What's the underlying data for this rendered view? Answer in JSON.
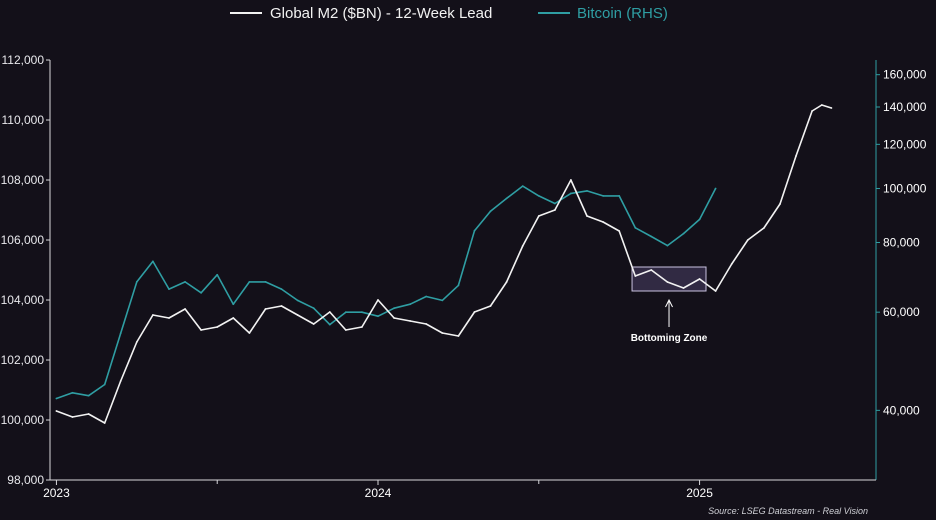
{
  "colors": {
    "background": "#131019",
    "m2_line": "#f2f2f2",
    "btc_line": "#2f9ea3",
    "right_axis": "#2f9ea3",
    "box_fill": "#4a3f66",
    "box_stroke": "#c9c2e0"
  },
  "chart_data": {
    "type": "line",
    "legend": {
      "placement": "top-center",
      "entries": [
        {
          "label": "Global M2 ($BN) - 12-Week Lead",
          "color": "#f2f2f2"
        },
        {
          "label": "Bitcoin (RHS)",
          "color": "#2f9ea3"
        }
      ]
    },
    "x_ticks": [
      "2023",
      "2024",
      "2025"
    ],
    "x_tick_values": [
      2023.0,
      2024.0,
      2025.0
    ],
    "xlim": [
      2022.98,
      2025.53
    ],
    "left_axis": {
      "ylim": [
        98000,
        112000
      ],
      "ticks": [
        98000,
        100000,
        102000,
        104000,
        106000,
        108000,
        110000,
        112000
      ],
      "tick_labels": [
        "98,000",
        "100,000",
        "102,000",
        "104,000",
        "106,000",
        "108,000",
        "110,000",
        "112,000"
      ]
    },
    "right_axis": {
      "scale": "log",
      "ylim": [
        30000,
        170000
      ],
      "ticks": [
        40000,
        60000,
        80000,
        100000,
        120000,
        140000,
        160000
      ],
      "tick_labels": [
        "40,000",
        "60,000",
        "80,000",
        "100,000",
        "120,000",
        "140,000",
        "160,000"
      ]
    },
    "series": [
      {
        "name": "Global M2 ($BN) - 12-Week Lead",
        "axis": "left",
        "x": [
          2023.0,
          2023.05,
          2023.1,
          2023.15,
          2023.2,
          2023.25,
          2023.3,
          2023.35,
          2023.4,
          2023.45,
          2023.5,
          2023.55,
          2023.6,
          2023.65,
          2023.7,
          2023.75,
          2023.8,
          2023.85,
          2023.9,
          2023.95,
          2024.0,
          2024.05,
          2024.1,
          2024.15,
          2024.2,
          2024.25,
          2024.3,
          2024.35,
          2024.4,
          2024.45,
          2024.5,
          2024.55,
          2024.6,
          2024.65,
          2024.7,
          2024.75,
          2024.8,
          2024.85,
          2024.9,
          2024.95,
          2025.0,
          2025.05,
          2025.1,
          2025.15,
          2025.2,
          2025.25,
          2025.3,
          2025.35,
          2025.38,
          2025.41
        ],
        "values": [
          100300,
          100100,
          100200,
          99900,
          101300,
          102600,
          103500,
          103400,
          103700,
          103000,
          103100,
          103400,
          102900,
          103700,
          103800,
          103500,
          103200,
          103600,
          103000,
          103100,
          104000,
          103400,
          103300,
          103200,
          102900,
          102800,
          103600,
          103800,
          104600,
          105800,
          106800,
          107000,
          108000,
          106800,
          106600,
          106300,
          104800,
          105000,
          104600,
          104400,
          104700,
          104300,
          105200,
          106000,
          106400,
          107200,
          108800,
          110300,
          110500,
          110400
        ]
      },
      {
        "name": "Bitcoin (RHS)",
        "axis": "right",
        "x": [
          2023.0,
          2023.05,
          2023.1,
          2023.15,
          2023.2,
          2023.25,
          2023.3,
          2023.35,
          2023.4,
          2023.45,
          2023.5,
          2023.55,
          2023.6,
          2023.65,
          2023.7,
          2023.75,
          2023.8,
          2023.85,
          2023.9,
          2023.95,
          2024.0,
          2024.05,
          2024.1,
          2024.15,
          2024.2,
          2024.25,
          2024.3,
          2024.35,
          2024.4,
          2024.45,
          2024.5,
          2024.55,
          2024.6,
          2024.65,
          2024.7,
          2024.75,
          2024.8,
          2024.85,
          2024.9,
          2024.95,
          2025.0,
          2025.05
        ],
        "values": [
          42000,
          43000,
          42500,
          44500,
          55000,
          68000,
          74000,
          66000,
          68000,
          65000,
          70000,
          62000,
          68000,
          68000,
          66000,
          63000,
          61000,
          57000,
          60000,
          60000,
          59000,
          61000,
          62000,
          64000,
          63000,
          67000,
          84000,
          91000,
          96000,
          101000,
          97000,
          94000,
          98000,
          99000,
          97000,
          97000,
          85000,
          82000,
          79000,
          83000,
          88000,
          100000
        ]
      }
    ],
    "annotations": [
      {
        "text": "Bottoming Zone",
        "x_range": [
          2024.79,
          2025.02
        ],
        "y_range_left": [
          104300,
          105100
        ]
      }
    ],
    "source": "Source: LSEG Datastream - Real Vision"
  }
}
